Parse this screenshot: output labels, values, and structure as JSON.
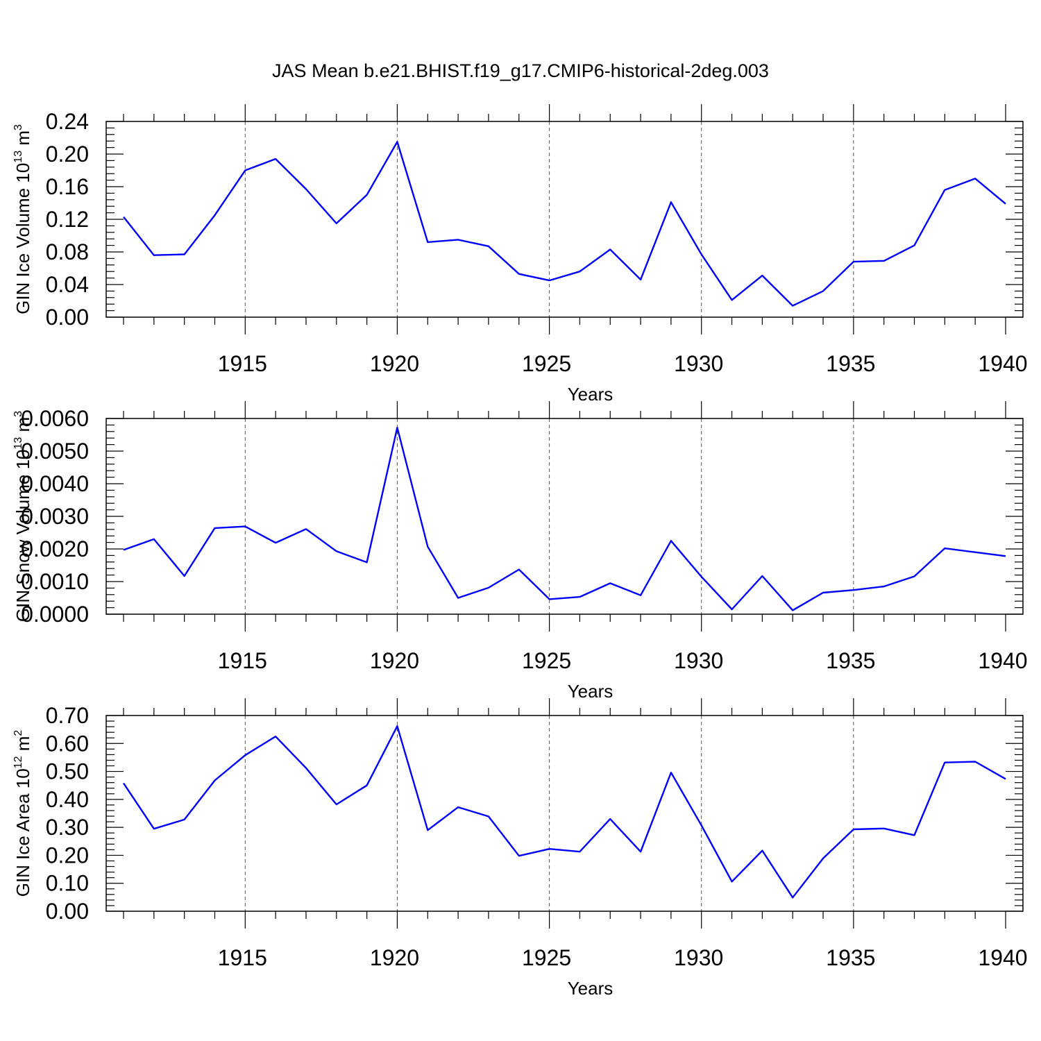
{
  "figure": {
    "title": "JAS Mean b.e21.BHIST.f19_g17.CMIP6-historical-2deg.003"
  },
  "style": {
    "line_color": "#0000ff",
    "grid_color": "#555555",
    "axis_color": "#000000"
  },
  "chart_data": [
    {
      "type": "line",
      "title": "",
      "xlabel": "Years",
      "ylabel": "GIN Ice Volume 10",
      "ylabel_exp1": "13",
      "ylabel_unit": " m",
      "ylabel_exp2": "3",
      "xlim": [
        1911,
        1940
      ],
      "ylim": [
        0,
        0.24
      ],
      "x_ticks": [
        1915,
        1920,
        1925,
        1930,
        1935,
        1940
      ],
      "y_ticks": [
        "0.00",
        "0.04",
        "0.08",
        "0.12",
        "0.16",
        "0.20",
        "0.24"
      ],
      "grid": "vertical dashed at major x ticks",
      "series": [
        {
          "x": [
            1911,
            1912,
            1913,
            1914,
            1915,
            1916,
            1917,
            1918,
            1919,
            1920,
            1921,
            1922,
            1923,
            1924,
            1925,
            1926,
            1927,
            1928,
            1929,
            1930,
            1931,
            1932,
            1933,
            1934,
            1935,
            1936,
            1937,
            1938,
            1939,
            1940
          ],
          "values": [
            0.123,
            0.076,
            0.077,
            0.125,
            0.18,
            0.194,
            0.157,
            0.115,
            0.15,
            0.215,
            0.092,
            0.095,
            0.087,
            0.053,
            0.045,
            0.056,
            0.083,
            0.046,
            0.141,
            0.077,
            0.021,
            0.051,
            0.014,
            0.032,
            0.068,
            0.069,
            0.088,
            0.156,
            0.17,
            0.139
          ]
        }
      ]
    },
    {
      "type": "line",
      "title": "",
      "xlabel": "Years",
      "ylabel": "GIN Snow Volume 10",
      "ylabel_exp1": "13",
      "ylabel_unit": " m",
      "ylabel_exp2": "3",
      "xlim": [
        1911,
        1940
      ],
      "ylim": [
        0,
        0.006
      ],
      "x_ticks": [
        1915,
        1920,
        1925,
        1930,
        1935,
        1940
      ],
      "y_ticks": [
        "0.0000",
        "0.0010",
        "0.0020",
        "0.0030",
        "0.0040",
        "0.0050",
        "0.0060"
      ],
      "grid": "vertical dashed at major x ticks",
      "series": [
        {
          "x": [
            1911,
            1912,
            1913,
            1914,
            1915,
            1916,
            1917,
            1918,
            1919,
            1920,
            1921,
            1922,
            1923,
            1924,
            1925,
            1926,
            1927,
            1928,
            1929,
            1930,
            1931,
            1932,
            1933,
            1934,
            1935,
            1936,
            1937,
            1938,
            1939,
            1940
          ],
          "values": [
            0.00197,
            0.0023,
            0.00117,
            0.00264,
            0.00269,
            0.00219,
            0.00261,
            0.00193,
            0.00159,
            0.00572,
            0.00207,
            0.0005,
            0.00081,
            0.00137,
            0.00046,
            0.00053,
            0.00095,
            0.00058,
            0.00225,
            0.00115,
            0.00015,
            0.00117,
            0.00012,
            0.00066,
            0.00074,
            0.00085,
            0.00116,
            0.00202,
            0.0019,
            0.00178
          ]
        }
      ]
    },
    {
      "type": "line",
      "title": "",
      "xlabel": "Years",
      "ylabel": "GIN Ice Area 10",
      "ylabel_exp1": "12",
      "ylabel_unit": " m",
      "ylabel_exp2": "2",
      "xlim": [
        1911,
        1940
      ],
      "ylim": [
        0,
        0.7
      ],
      "x_ticks": [
        1915,
        1920,
        1925,
        1930,
        1935,
        1940
      ],
      "y_ticks": [
        "0.00",
        "0.10",
        "0.20",
        "0.30",
        "0.40",
        "0.50",
        "0.60",
        "0.70"
      ],
      "grid": "vertical dashed at major x ticks",
      "series": [
        {
          "x": [
            1911,
            1912,
            1913,
            1914,
            1915,
            1916,
            1917,
            1918,
            1919,
            1920,
            1921,
            1922,
            1923,
            1924,
            1925,
            1926,
            1927,
            1928,
            1929,
            1930,
            1931,
            1932,
            1933,
            1934,
            1935,
            1936,
            1937,
            1938,
            1939,
            1940
          ],
          "values": [
            0.458,
            0.295,
            0.328,
            0.468,
            0.558,
            0.625,
            0.512,
            0.382,
            0.45,
            0.662,
            0.29,
            0.372,
            0.339,
            0.198,
            0.223,
            0.213,
            0.33,
            0.213,
            0.496,
            0.307,
            0.106,
            0.217,
            0.049,
            0.189,
            0.293,
            0.296,
            0.272,
            0.532,
            0.535,
            0.473
          ]
        }
      ]
    }
  ]
}
